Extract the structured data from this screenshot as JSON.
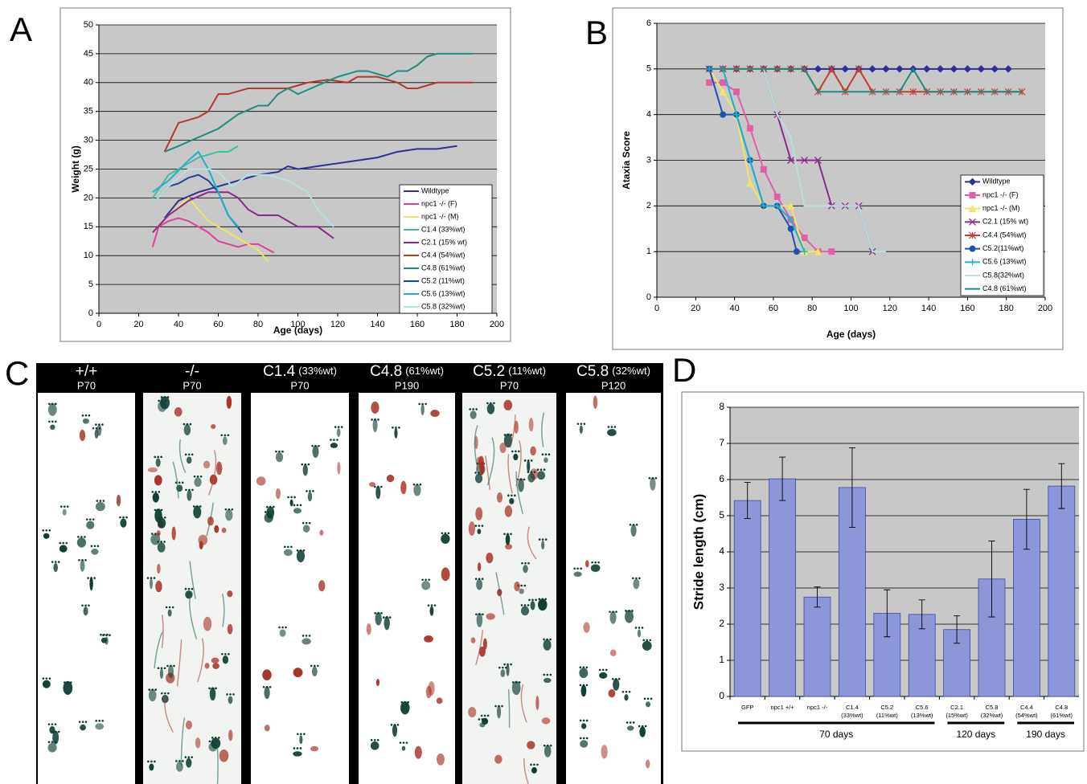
{
  "chart_data": [
    {
      "type": "line",
      "panel": "A",
      "x_label": "Age (days)",
      "y_label": "Weight (g)",
      "xlim": [
        0,
        200
      ],
      "xticks": [
        0,
        20,
        40,
        60,
        80,
        100,
        120,
        140,
        160,
        180,
        200
      ],
      "ylim": [
        0,
        50
      ],
      "yticks": [
        0,
        5,
        10,
        15,
        20,
        25,
        30,
        35,
        40,
        45,
        50
      ],
      "grid": true,
      "legend": "lower right",
      "series": [
        {
          "name": "Wildtype",
          "color": "#2e3192",
          "x": [
            33,
            40,
            50,
            60,
            70,
            75,
            80,
            90,
            95,
            100,
            110,
            120,
            130,
            140,
            150,
            160,
            170,
            180
          ],
          "values": [
            16.5,
            19.5,
            21,
            22,
            23,
            23.5,
            24,
            24.5,
            25.5,
            25,
            25.5,
            26,
            26.5,
            27,
            28,
            28.5,
            28.5,
            29
          ]
        },
        {
          "name": "npc1 -/- (F)",
          "color": "#e0409a",
          "x": [
            27,
            30,
            35,
            40,
            45,
            50,
            55,
            60,
            70,
            75,
            80,
            88
          ],
          "values": [
            11.5,
            15,
            16,
            16.5,
            16,
            15,
            14,
            12.5,
            11.5,
            12,
            12,
            10.5
          ]
        },
        {
          "name": "npc1 -/- (M)",
          "color": "#f2e46a",
          "x": [
            27,
            35,
            45,
            50,
            55,
            60,
            70,
            80,
            85
          ],
          "values": [
            14,
            17,
            20,
            18,
            16,
            15,
            13,
            11,
            9
          ]
        },
        {
          "name": "C1.4 (33%wt)",
          "color": "#3ec0a0",
          "x": [
            27,
            35,
            40,
            45,
            50,
            60,
            65,
            70
          ],
          "values": [
            20,
            24,
            25,
            26,
            27,
            28,
            28,
            29
          ]
        },
        {
          "name": "C2.1 (15% wt)",
          "color": "#8b2a8b",
          "x": [
            27,
            35,
            45,
            55,
            65,
            70,
            75,
            80,
            90,
            95,
            100,
            110,
            118
          ],
          "values": [
            14,
            17,
            19.5,
            21,
            21,
            20,
            18,
            17,
            17,
            16,
            15,
            15,
            13
          ]
        },
        {
          "name": "C4.4 (54%wt)",
          "color": "#b03a2e",
          "x": [
            33,
            40,
            50,
            55,
            60,
            65,
            70,
            75,
            80,
            85,
            95,
            100,
            105,
            115,
            125,
            130,
            140,
            150,
            155,
            160,
            170,
            180,
            188
          ],
          "values": [
            28,
            33,
            34,
            35,
            38,
            38,
            38.5,
            39,
            39,
            39,
            39,
            39.5,
            40,
            40.5,
            40,
            41,
            41,
            40,
            39,
            39,
            40,
            40,
            40
          ]
        },
        {
          "name": "C4.8 (61%wt)",
          "color": "#1e8c7e",
          "x": [
            33,
            40,
            50,
            60,
            70,
            80,
            85,
            90,
            95,
            100,
            110,
            120,
            125,
            130,
            135,
            145,
            150,
            155,
            160,
            165,
            170,
            180,
            188
          ],
          "values": [
            28,
            29,
            30.5,
            32,
            34.5,
            36,
            36,
            38,
            39,
            38,
            39.5,
            41,
            41.5,
            42,
            42,
            41,
            42,
            42,
            43,
            44.5,
            45,
            45,
            45
          ]
        },
        {
          "name": "C5.2 (11%wt)",
          "color": "#2040a0",
          "x": [
            27,
            35,
            40,
            45,
            50,
            55,
            60,
            65,
            72
          ],
          "values": [
            19,
            22,
            22.5,
            23.5,
            24,
            23,
            21,
            17,
            14
          ]
        },
        {
          "name": "C5.6 (13%wt)",
          "color": "#20b0c8",
          "x": [
            27,
            35,
            45,
            50,
            55,
            60,
            65,
            70
          ],
          "values": [
            21,
            23,
            26.5,
            28,
            25,
            21,
            17,
            15
          ]
        },
        {
          "name": "C5.8 (32%wt)",
          "color": "#b4e2e0",
          "x": [
            27,
            35,
            45,
            55,
            60,
            67,
            75,
            85,
            95,
            105,
            110,
            118
          ],
          "values": [
            19,
            22,
            25,
            25,
            24.5,
            22,
            24,
            24,
            23,
            21,
            18,
            15
          ]
        }
      ]
    },
    {
      "type": "line",
      "panel": "B",
      "x_label": "Age (days)",
      "y_label": "Ataxia Score",
      "xlim": [
        0,
        200
      ],
      "xticks": [
        0,
        20,
        40,
        60,
        80,
        100,
        120,
        140,
        160,
        180,
        200
      ],
      "ylim": [
        0,
        6
      ],
      "yticks": [
        0,
        1,
        2,
        3,
        4,
        5,
        6
      ],
      "grid": true,
      "legend": "lower right",
      "series": [
        {
          "name": "Wildtype",
          "color": "#2e3192",
          "marker": "diamond",
          "x": [
            27,
            34,
            41,
            48,
            55,
            62,
            69,
            76,
            83,
            90,
            97,
            104,
            111,
            118,
            125,
            132,
            139,
            146,
            153,
            160,
            167,
            174,
            181
          ],
          "values": [
            5,
            5,
            5,
            5,
            5,
            5,
            5,
            5,
            5,
            5,
            5,
            5,
            5,
            5,
            5,
            5,
            5,
            5,
            5,
            5,
            5,
            5,
            5
          ]
        },
        {
          "name": "npc1 -/- (F)",
          "color": "#e060a8",
          "marker": "square",
          "x": [
            27,
            34,
            41,
            48,
            55,
            62,
            69,
            76,
            83,
            90
          ],
          "values": [
            4.7,
            4.7,
            4.5,
            3.7,
            2.8,
            2.2,
            1.7,
            1.3,
            1,
            1
          ]
        },
        {
          "name": "npc1 -/- (M)",
          "color": "#f2e46a",
          "marker": "triangle",
          "x": [
            27,
            34,
            41,
            48,
            55,
            62,
            69,
            76,
            83
          ],
          "values": [
            5,
            4.5,
            4,
            2.5,
            2,
            2,
            2,
            1,
            1
          ]
        },
        {
          "name": "C2.1 (15% wt)",
          "color": "#8b2a8b",
          "marker": "x",
          "x": [
            27,
            34,
            41,
            48,
            55,
            62,
            69,
            76,
            83,
            90,
            97,
            104,
            111
          ],
          "values": [
            5,
            5,
            5,
            5,
            5,
            4,
            3,
            3,
            3,
            2,
            2,
            2,
            1
          ]
        },
        {
          "name": "C4.4 (54%wt)",
          "color": "#c04030",
          "marker": "star",
          "x": [
            27,
            34,
            41,
            48,
            55,
            62,
            69,
            76,
            83,
            90,
            97,
            104,
            111,
            118,
            125,
            132,
            139,
            146,
            153,
            160,
            167,
            174,
            181,
            188
          ],
          "values": [
            5,
            5,
            5,
            5,
            5,
            5,
            5,
            5,
            4.5,
            5,
            4.5,
            5,
            4.5,
            4.5,
            4.5,
            4.5,
            4.5,
            4.5,
            4.5,
            4.5,
            4.5,
            4.5,
            4.5,
            4.5
          ]
        },
        {
          "name": "C5.2(11%wt)",
          "color": "#2050b0",
          "marker": "circle",
          "x": [
            27,
            34,
            41,
            48,
            55,
            62,
            69,
            72
          ],
          "values": [
            5,
            4,
            4,
            3,
            2,
            2,
            1.5,
            1
          ]
        },
        {
          "name": "C5.6 (13%wt)",
          "color": "#20b0c8",
          "marker": "plus",
          "x": [
            27,
            34,
            41,
            48,
            55,
            62,
            69,
            76
          ],
          "values": [
            5,
            5,
            4,
            3,
            2,
            2,
            1.7,
            1
          ]
        },
        {
          "name": "C5.8(32%wt)",
          "color": "#b4e2e0",
          "x": [
            27,
            34,
            41,
            48,
            55,
            62,
            69,
            76,
            83,
            90,
            97,
            104,
            111,
            118
          ],
          "values": [
            5,
            5,
            5,
            5,
            5,
            4,
            3.5,
            2,
            2,
            2,
            2,
            2,
            1,
            1
          ]
        },
        {
          "name": "C4.8 (61%wt)",
          "color": "#1e8c7e",
          "x": [
            27,
            34,
            41,
            48,
            55,
            62,
            69,
            76,
            83,
            90,
            97,
            104,
            111,
            118,
            125,
            132,
            139,
            146,
            153,
            160,
            167,
            174,
            181,
            188
          ],
          "values": [
            5,
            5,
            5,
            5,
            5,
            5,
            5,
            5,
            4.5,
            4.5,
            4.5,
            4.5,
            4.5,
            4.5,
            4.5,
            5,
            4.5,
            4.5,
            4.5,
            4.5,
            4.5,
            4.5,
            4.5,
            4.5
          ]
        }
      ]
    },
    {
      "type": "bar",
      "panel": "D",
      "y_label": "Stride length (cm)",
      "color": "#8c96d8",
      "ylim": [
        0,
        8
      ],
      "yticks": [
        0,
        1,
        2,
        3,
        4,
        5,
        6,
        7,
        8
      ],
      "grid": true,
      "categories": [
        [
          "GFP"
        ],
        [
          "npc1 +/+"
        ],
        [
          "npc1 -/-"
        ],
        [
          "C1.4",
          "(33%wt)"
        ],
        [
          "C5.2",
          "(11%wt)"
        ],
        [
          "C5.6",
          "(13%wt)"
        ],
        [
          "C2.1",
          "(15%wt)"
        ],
        [
          "C5.8",
          "(32%wt)"
        ],
        [
          "C4.4",
          "(54%wt)"
        ],
        [
          "C4.8",
          "(61%wt)"
        ]
      ],
      "values": [
        5.42,
        6.02,
        2.75,
        5.78,
        2.3,
        2.27,
        1.85,
        3.25,
        4.9,
        5.82
      ],
      "errors": [
        0.5,
        0.6,
        0.28,
        1.1,
        0.65,
        0.4,
        0.38,
        1.05,
        0.83,
        0.62
      ],
      "groups": [
        "70 days",
        "120 days",
        "190 days"
      ]
    }
  ],
  "footprints": {
    "panel": "C",
    "columns": [
      {
        "genotype": "+/+",
        "age": "P70"
      },
      {
        "genotype": "-/-",
        "age": "P70"
      },
      {
        "genotype": "C1.4",
        "percent": "(33%wt)",
        "age": "P70"
      },
      {
        "genotype": "C4.8",
        "percent": "(61%wt)",
        "age": "P190"
      },
      {
        "genotype": "C5.2",
        "percent": "(11%wt)",
        "age": "P70"
      },
      {
        "genotype": "C5.8",
        "percent": "(32%wt)",
        "age": "P120"
      }
    ]
  }
}
